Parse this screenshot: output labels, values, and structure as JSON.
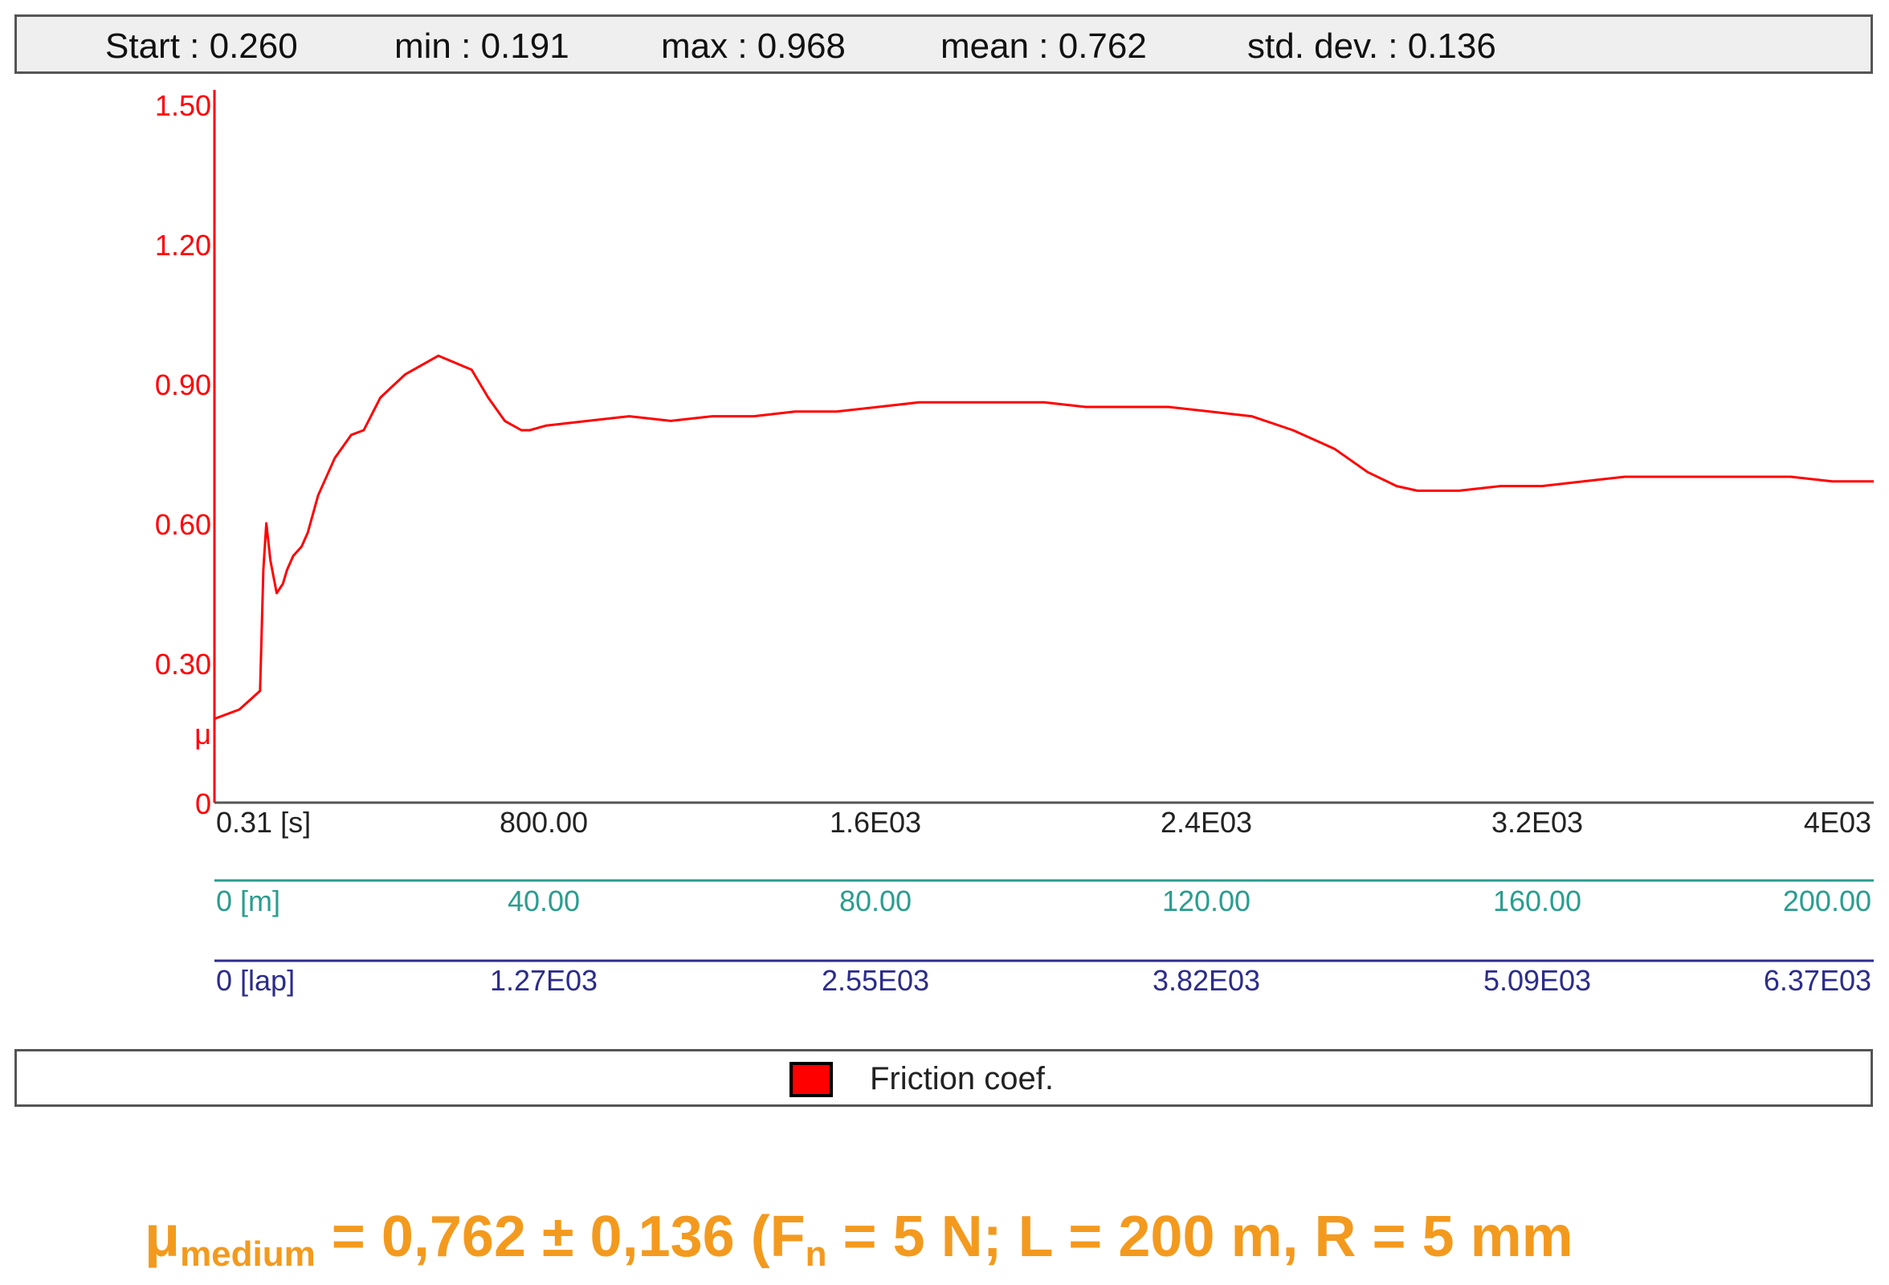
{
  "stats": {
    "start": "Start : 0.260",
    "min": "min : 0.191",
    "max": "max : 0.968",
    "mean": "mean : 0.762",
    "std": "std. dev. : 0.136"
  },
  "colors": {
    "series": "#ff0000",
    "distance_axis": "#2a9d8f",
    "lap_axis": "#2c2c8c",
    "formula": "#f39a1e"
  },
  "chart_data": {
    "type": "line",
    "xlim": [
      0.31,
      4000
    ],
    "ylim": [
      0,
      1.5
    ],
    "ylabel": "μ",
    "y_ticks": [
      "0",
      "0.30",
      "0.60",
      "0.90",
      "1.20",
      "1.50"
    ],
    "axes": {
      "time": {
        "ticks": [
          "0.31 [s]",
          "800.00",
          "1.6E03",
          "2.4E03",
          "3.2E03",
          "4E03"
        ]
      },
      "distance": {
        "ticks": [
          "0 [m]",
          "40.00",
          "80.00",
          "120.00",
          "160.00",
          "200.00"
        ]
      },
      "laps": {
        "ticks": [
          "0 [lap]",
          "1.27E03",
          "2.55E03",
          "3.82E03",
          "5.09E03",
          "6.37E03"
        ]
      }
    },
    "legend": "bottom",
    "series": [
      {
        "name": "Friction coef.",
        "x": [
          0,
          60,
          110,
          118,
          125,
          135,
          150,
          165,
          175,
          190,
          210,
          225,
          250,
          290,
          330,
          360,
          400,
          460,
          540,
          620,
          660,
          700,
          740,
          760,
          800,
          900,
          1000,
          1100,
          1200,
          1300,
          1400,
          1500,
          1600,
          1700,
          1800,
          1850,
          1900,
          2000,
          2100,
          2200,
          2300,
          2400,
          2500,
          2600,
          2700,
          2780,
          2850,
          2900,
          3000,
          3100,
          3200,
          3300,
          3400,
          3500,
          3600,
          3700,
          3800,
          3900,
          4000
        ],
        "y": [
          0.18,
          0.2,
          0.24,
          0.5,
          0.6,
          0.52,
          0.45,
          0.47,
          0.5,
          0.53,
          0.55,
          0.58,
          0.66,
          0.74,
          0.79,
          0.8,
          0.87,
          0.92,
          0.96,
          0.93,
          0.87,
          0.82,
          0.8,
          0.8,
          0.81,
          0.82,
          0.83,
          0.82,
          0.83,
          0.83,
          0.84,
          0.84,
          0.85,
          0.86,
          0.86,
          0.86,
          0.86,
          0.86,
          0.85,
          0.85,
          0.85,
          0.84,
          0.83,
          0.8,
          0.76,
          0.71,
          0.68,
          0.67,
          0.67,
          0.68,
          0.68,
          0.69,
          0.7,
          0.7,
          0.7,
          0.7,
          0.7,
          0.69,
          0.69
        ]
      }
    ]
  },
  "legend": {
    "label": "Friction coef."
  },
  "formula": {
    "mu": "μ",
    "sub": "medium",
    "rest_before_n": " = 0,762 ± 0,136    (F",
    "n_sub": "n",
    "rest_after_n": " = 5 N; L = 200 m, R = 5 mm"
  }
}
